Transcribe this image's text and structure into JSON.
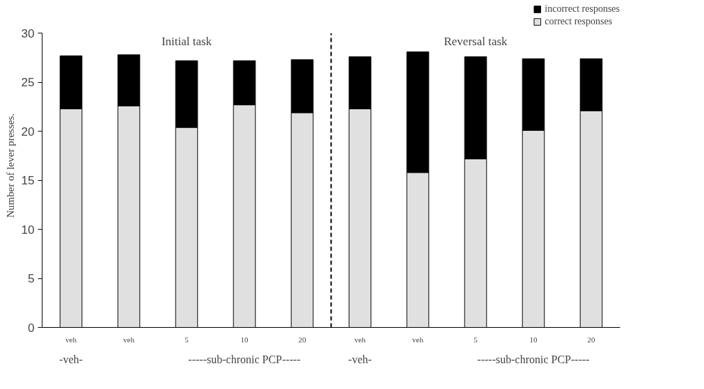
{
  "chart_data": {
    "type": "bar",
    "stacked": true,
    "ylabel": "Number of lever presses.",
    "categories": [
      "veh",
      "veh",
      "5",
      "10",
      "20",
      "veh",
      "veh",
      "5",
      "10",
      "20"
    ],
    "series": [
      {
        "name": "correct responses",
        "color": "#e0e0e0",
        "values": [
          22.3,
          22.6,
          20.4,
          22.7,
          21.9,
          22.3,
          15.8,
          17.2,
          20.1,
          22.1
        ]
      },
      {
        "name": "incorrect responses",
        "color": "#000000",
        "values": [
          5.4,
          5.2,
          6.8,
          4.5,
          5.4,
          5.3,
          12.3,
          10.4,
          7.3,
          5.3
        ]
      }
    ],
    "ylim": [
      0,
      30
    ],
    "yticks": [
      0,
      5,
      10,
      15,
      20,
      25,
      30
    ],
    "legend": "top right",
    "annotations": [
      "Initial task",
      "Reversal task",
      "-veh-",
      "-----sub-chronic PCP-----",
      "-veh-",
      "-----sub-chronic PCP-----"
    ]
  }
}
